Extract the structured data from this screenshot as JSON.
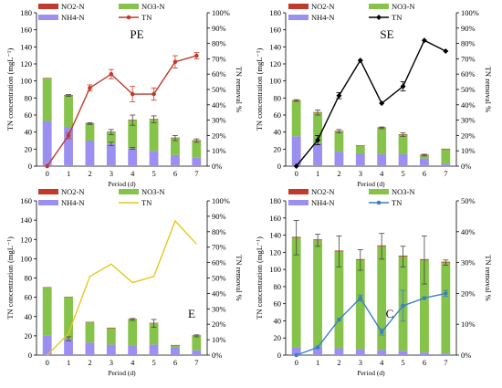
{
  "chart_data": [
    {
      "type": "bar",
      "title": "PE",
      "categories": [
        "0",
        "1",
        "2",
        "3",
        "4",
        "5",
        "6",
        "7"
      ],
      "xlabel": "Period (d)",
      "ylabel": "TN concentration (mgL⁻¹)",
      "y2label": "TN removal %",
      "ylim": [
        0,
        180
      ],
      "yticks": [
        "0",
        "20",
        "40",
        "60",
        "80",
        "100",
        "120",
        "140",
        "160",
        "180"
      ],
      "y2lim": [
        0,
        100
      ],
      "y2ticks": [
        "0%",
        "10%",
        "20%",
        "30%",
        "40%",
        "50%",
        "60%",
        "70%",
        "80%",
        "90%",
        "100%"
      ],
      "legend_cols": 2,
      "series": [
        {
          "name": "NH4-N",
          "values": [
            53,
            46,
            30,
            26,
            21,
            18,
            13,
            10
          ],
          "err": [
            0,
            0,
            0,
            2,
            1,
            0,
            0,
            0
          ],
          "color": "#9b8fef"
        },
        {
          "name": "NO3-N",
          "values": [
            50,
            37,
            20,
            14,
            33,
            37,
            20,
            20
          ],
          "err": [
            0,
            1,
            1,
            3,
            6,
            4,
            3,
            2
          ],
          "color": "#86c34a"
        },
        {
          "name": "NO2-N",
          "values": [
            0.5,
            0.5,
            0.5,
            0.5,
            0.5,
            0.5,
            0.5,
            0.5
          ],
          "color": "#c0392b"
        }
      ],
      "line": {
        "name": "TN",
        "values": [
          0,
          20,
          51,
          60,
          47,
          47,
          68,
          72
        ],
        "err": [
          0,
          2,
          2,
          3,
          5,
          4,
          4,
          2
        ],
        "color": "#c0392b",
        "marker": "circle"
      }
    },
    {
      "type": "bar",
      "title": "SE",
      "categories": [
        "0",
        "1",
        "2",
        "3",
        "4",
        "5",
        "6",
        "7"
      ],
      "xlabel": "Period (d)",
      "ylabel": "TN concentration (mgL⁻¹)",
      "y2label": "TN removal %",
      "ylim": [
        0,
        180
      ],
      "yticks": [
        "0",
        "20",
        "40",
        "60",
        "80",
        "100",
        "120",
        "140",
        "160",
        "180"
      ],
      "y2lim": [
        0,
        100
      ],
      "y2ticks": [
        "0%",
        "10%",
        "20%",
        "30%",
        "40%",
        "50%",
        "60%",
        "70%",
        "80%",
        "90%",
        "100%"
      ],
      "legend_cols": 2,
      "series": [
        {
          "name": "NH4-N",
          "values": [
            35,
            27,
            17,
            15,
            14,
            14,
            9,
            3
          ],
          "err": [
            0,
            0,
            0,
            0,
            0,
            0,
            0,
            0
          ],
          "color": "#9b8fef"
        },
        {
          "name": "NO3-N",
          "values": [
            42,
            36,
            24,
            9,
            31,
            23,
            4,
            17
          ],
          "err": [
            1,
            3,
            2,
            0,
            1,
            2,
            1,
            0
          ],
          "color": "#86c34a"
        },
        {
          "name": "NO2-N",
          "values": [
            0.5,
            0.5,
            0.5,
            0.5,
            0.5,
            0.5,
            0.5,
            0.5
          ],
          "color": "#c0392b"
        }
      ],
      "line": {
        "name": "TN",
        "values": [
          0,
          17,
          46,
          69,
          41,
          52,
          82,
          75
        ],
        "err": [
          0,
          3,
          2,
          0,
          0,
          3,
          0,
          0
        ],
        "color": "#000000",
        "marker": "diamond"
      }
    },
    {
      "type": "bar",
      "title": "E",
      "categories": [
        "0",
        "1",
        "2",
        "3",
        "4",
        "5",
        "6",
        "7"
      ],
      "xlabel": "Period (d)",
      "ylabel": "TN concentration (mgL⁻¹)",
      "y2label": "TN removal %",
      "ylim": [
        0,
        160
      ],
      "yticks": [
        "0",
        "20",
        "40",
        "60",
        "80",
        "100",
        "120",
        "140",
        "160"
      ],
      "y2lim": [
        0,
        100
      ],
      "y2ticks": [
        "0%",
        "10%",
        "20%",
        "30%",
        "40%",
        "50%",
        "60%",
        "70%",
        "80%",
        "90%",
        "100%"
      ],
      "legend_cols": 2,
      "series": [
        {
          "name": "NH4-N",
          "values": [
            20,
            17,
            13,
            11,
            10,
            11,
            8,
            5
          ],
          "err": [
            0,
            2,
            0,
            0,
            0,
            0,
            0,
            0
          ],
          "color": "#9b8fef"
        },
        {
          "name": "NO3-N",
          "values": [
            50,
            43,
            21,
            17,
            27,
            22,
            2,
            15
          ],
          "err": [
            0,
            0,
            0,
            0,
            1,
            4,
            0,
            1
          ],
          "color": "#86c34a"
        },
        {
          "name": "NO2-N",
          "values": [
            0.5,
            0.5,
            0.5,
            0.5,
            0.5,
            0.5,
            0.5,
            0.5
          ],
          "color": "#c0392b"
        }
      ],
      "line": {
        "name": "TN",
        "values": [
          0,
          14,
          51,
          59,
          47,
          51,
          87,
          72
        ],
        "err": [
          0,
          0,
          0,
          0,
          0,
          0,
          0,
          0
        ],
        "color": "#e6c81e",
        "marker": "none"
      }
    },
    {
      "type": "bar",
      "title": "C",
      "categories": [
        "0",
        "1",
        "2",
        "3",
        "4",
        "5",
        "6",
        "7"
      ],
      "xlabel": "Period (d)",
      "ylabel": "TN concentration (mgL⁻¹)",
      "y2label": "TN removal %",
      "ylim": [
        0,
        180
      ],
      "yticks": [
        "0",
        "20",
        "40",
        "60",
        "80",
        "100",
        "120",
        "140",
        "160",
        "180"
      ],
      "y2lim": [
        0,
        50
      ],
      "y2ticks": [
        "0%",
        "10%",
        "20%",
        "30%",
        "40%",
        "50%"
      ],
      "legend_cols": 2,
      "series": [
        {
          "name": "NH4-N",
          "values": [
            9,
            10,
            8,
            7,
            6,
            5,
            3,
            2
          ],
          "err": [
            0,
            0,
            0,
            0,
            0,
            0,
            0,
            0
          ],
          "color": "#9b8fef"
        },
        {
          "name": "NO3-N",
          "values": [
            128,
            124,
            113,
            104,
            121,
            110,
            108,
            106
          ],
          "err": [
            20,
            7,
            18,
            12,
            15,
            12,
            28,
            3
          ],
          "color": "#86c34a"
        },
        {
          "name": "NO2-N",
          "values": [
            1,
            1,
            1,
            1,
            1,
            1,
            1,
            1
          ],
          "color": "#c0392b"
        }
      ],
      "line": {
        "name": "TN",
        "values": [
          0,
          2.5,
          11.5,
          18.5,
          7.5,
          16,
          18.5,
          20
        ],
        "err": [
          0,
          0,
          0,
          1,
          1,
          5,
          0,
          1
        ],
        "color": "#3d7fc4",
        "marker": "circle"
      }
    }
  ]
}
